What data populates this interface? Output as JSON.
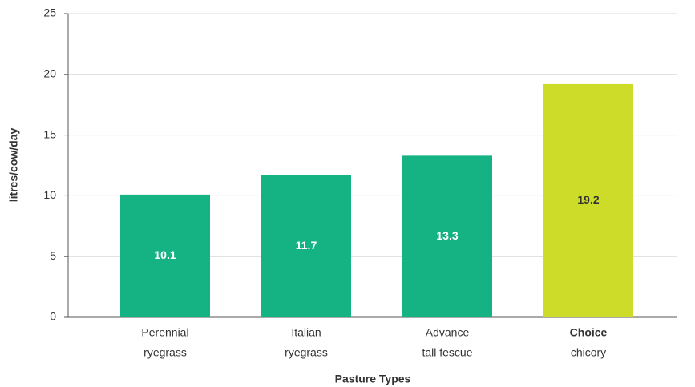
{
  "chart_data": {
    "type": "bar",
    "y_label": "litres/cow/day",
    "x_label": "Pasture Types",
    "categories": [
      [
        "Perennial",
        "ryegrass"
      ],
      [
        "Italian",
        "ryegrass"
      ],
      [
        "Advance",
        "tall fescue"
      ],
      [
        "Choice",
        "chicory"
      ]
    ],
    "values": [
      10.1,
      11.7,
      13.3,
      19.2
    ],
    "color": "#15b383",
    "highlight": 3,
    "highlight_color": "#cddc29",
    "ylim": [
      0,
      25
    ],
    "yticks": [
      0,
      5,
      10,
      15,
      20,
      25
    ],
    "grid": true
  }
}
